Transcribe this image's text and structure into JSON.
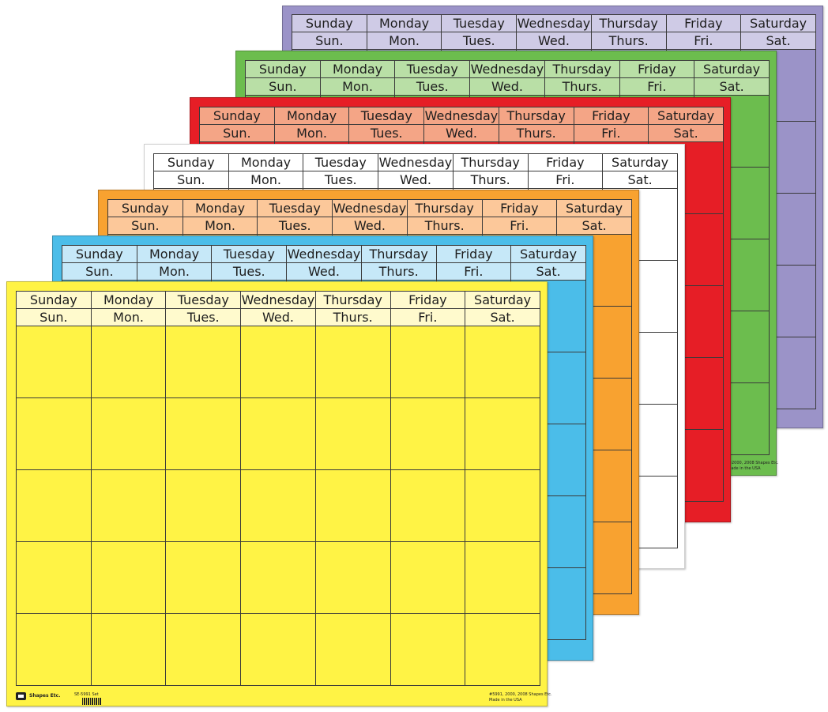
{
  "calendar_headers": {
    "full": [
      "Sunday",
      "Monday",
      "Tuesday",
      "Wednesday",
      "Thursday",
      "Friday",
      "Saturday"
    ],
    "abbr": [
      "Sun.",
      "Mon.",
      "Tues.",
      "Wed.",
      "Thurs.",
      "Fri.",
      "Sat."
    ]
  },
  "sheets": [
    {
      "color_name": "purple",
      "paper_color": "#9b93c8",
      "header_light": "#cfcbe6"
    },
    {
      "color_name": "green",
      "paper_color": "#6cbd4e",
      "header_light": "#b9dfa6"
    },
    {
      "color_name": "red",
      "paper_color": "#e61e26",
      "header_light": "#f4a586"
    },
    {
      "color_name": "white",
      "paper_color": "#ffffff",
      "header_light": "#ffffff"
    },
    {
      "color_name": "orange",
      "paper_color": "#f8a230",
      "header_light": "#fcc89a"
    },
    {
      "color_name": "blue",
      "paper_color": "#4bbde9",
      "header_light": "#c6e8f8"
    },
    {
      "color_name": "yellow",
      "paper_color": "#fff345",
      "header_light": "#fffacd"
    }
  ],
  "footer": {
    "brand": "Shapes Etc.",
    "item_number": "SE-5991 Set",
    "copyright": "#5991, 2000, 2008 Shapes Etc.",
    "made_in": "Made in the USA",
    "green_copyright": "©2000, 2008 Shapes Etc.",
    "green_made_in": "Made in the USA"
  }
}
